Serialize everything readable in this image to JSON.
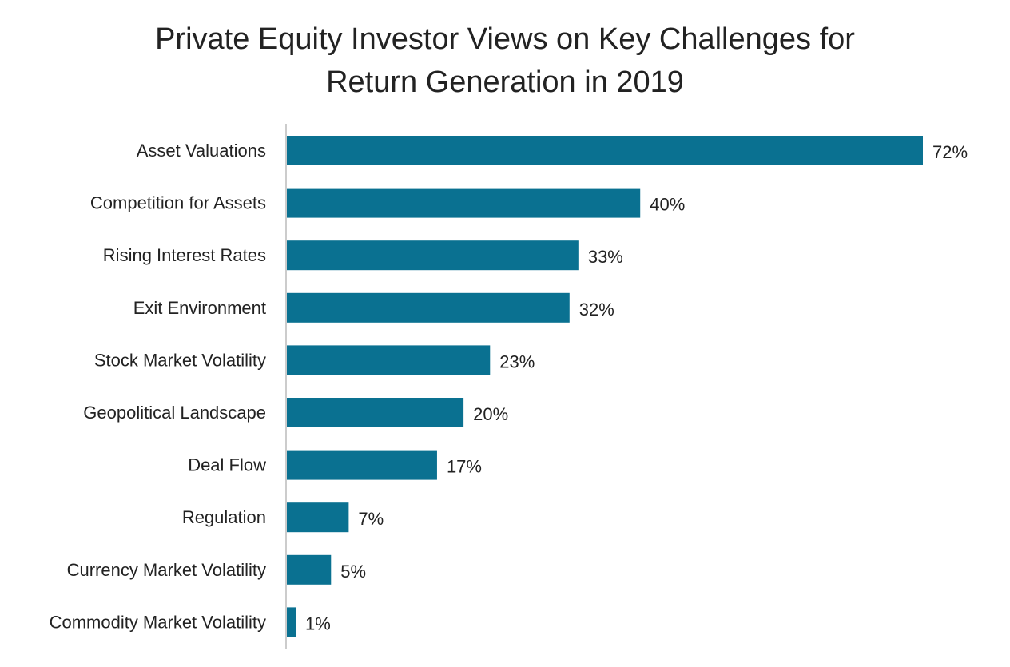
{
  "chart_data": {
    "type": "bar",
    "orientation": "horizontal",
    "title": "Private Equity Investor Views on Key Challenges for\nReturn Generation in 2019",
    "categories": [
      "Asset Valuations",
      "Competition for Assets",
      "Rising Interest Rates",
      "Exit Environment",
      "Stock Market Volatility",
      "Geopolitical Landscape",
      "Deal Flow",
      "Regulation",
      "Currency Market Volatility",
      "Commodity Market Volatility"
    ],
    "values": [
      72,
      40,
      33,
      32,
      23,
      20,
      17,
      7,
      5,
      1
    ],
    "value_labels": [
      "72%",
      "40%",
      "33%",
      "32%",
      "23%",
      "20%",
      "17%",
      "7%",
      "5%",
      "1%"
    ],
    "unit": "%",
    "xlim": [
      0,
      72
    ],
    "grid": false,
    "legend": "none",
    "bar_color": "#0a7191",
    "axis_color": "#cccccc"
  }
}
